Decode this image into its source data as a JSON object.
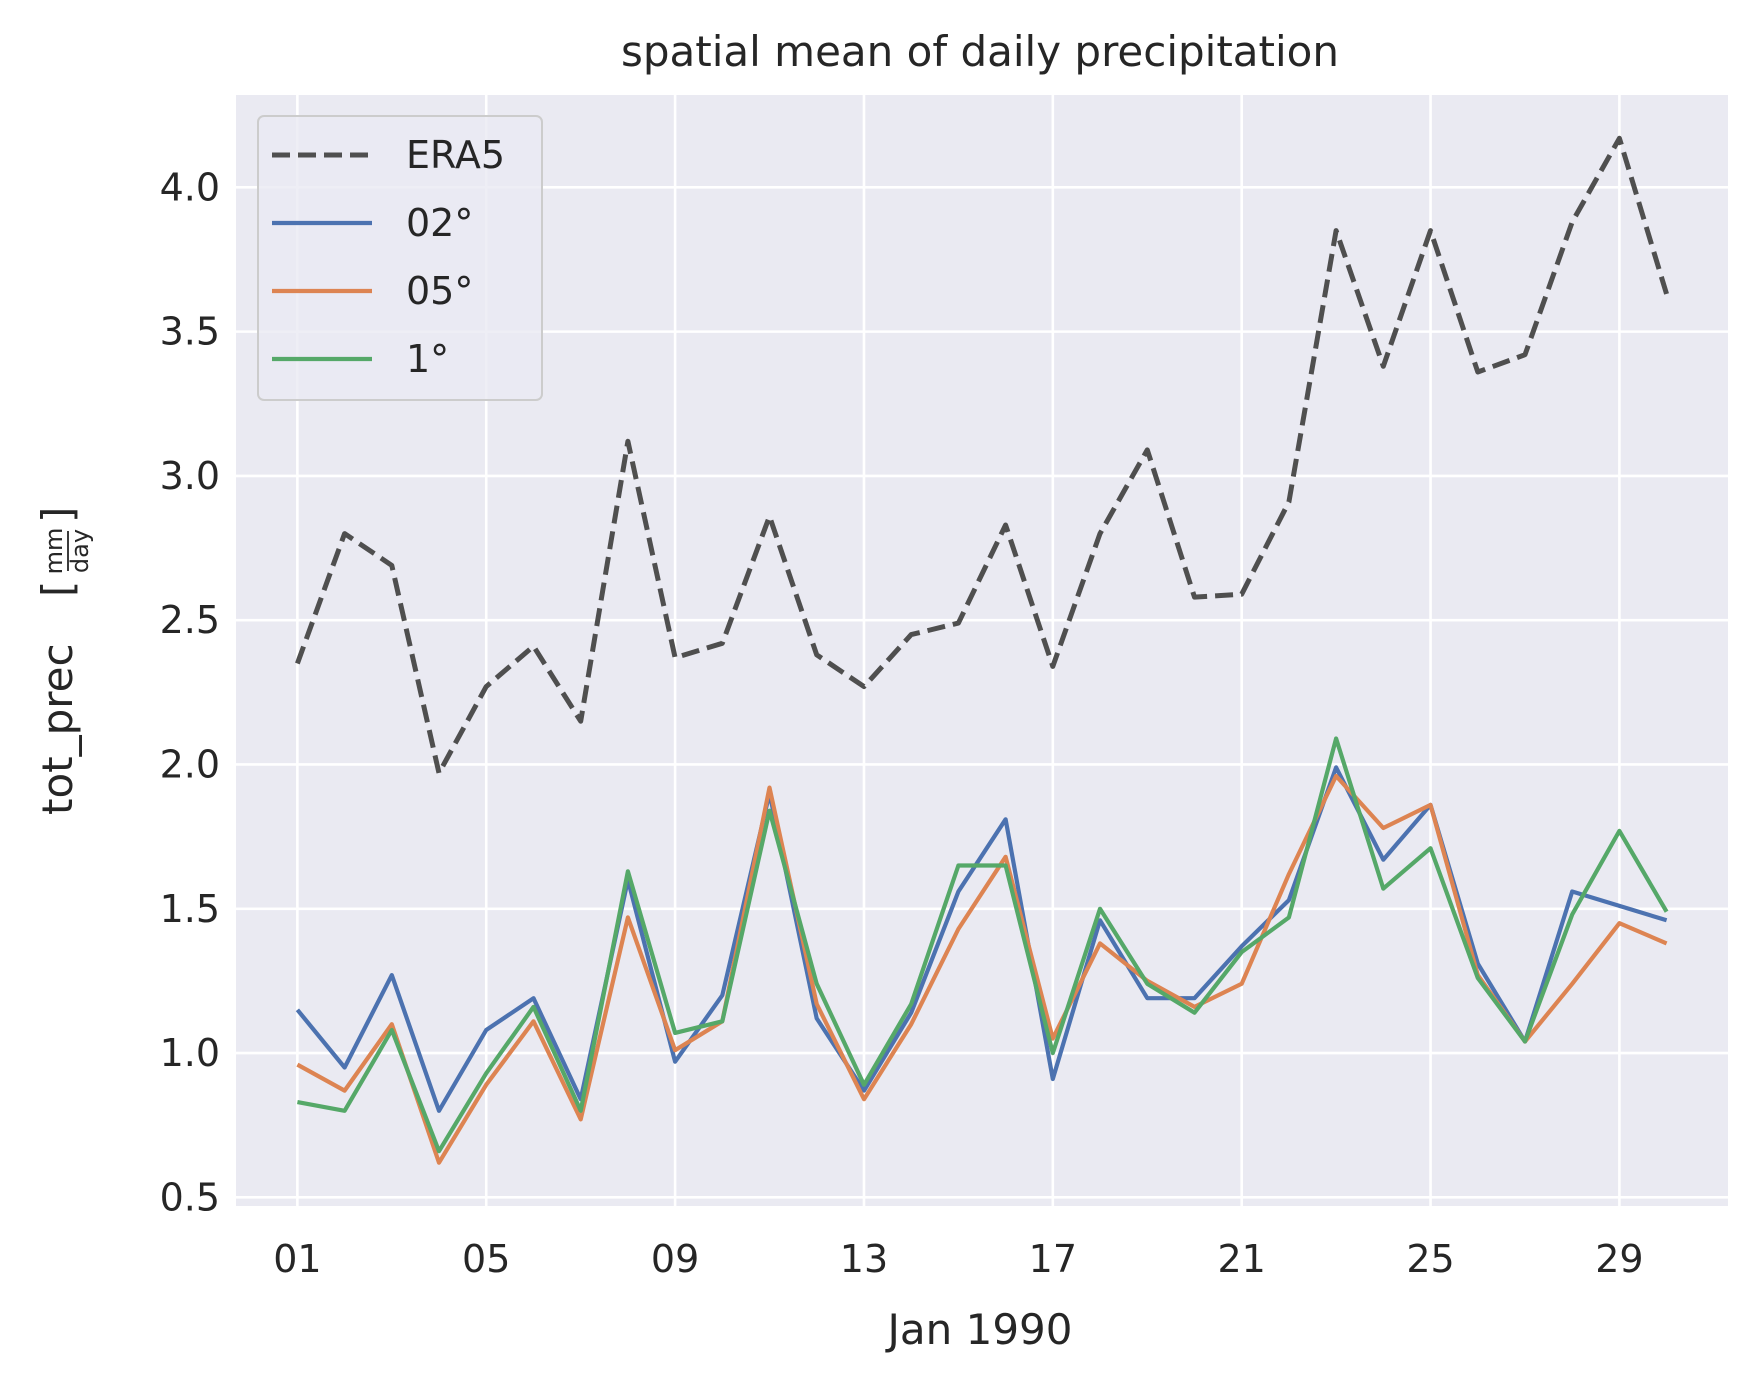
{
  "chart_data": {
    "type": "line",
    "title": "spatial mean of daily precipitation",
    "xlabel": "Jan 1990",
    "ylabel": {
      "prefix": "tot_prec",
      "unit_numerator": "mm",
      "unit_denominator": "day"
    },
    "x": [
      1,
      2,
      3,
      4,
      5,
      6,
      7,
      8,
      9,
      10,
      11,
      12,
      13,
      14,
      15,
      16,
      17,
      18,
      19,
      20,
      21,
      22,
      23,
      24,
      25,
      26,
      27,
      28,
      29,
      30
    ],
    "x_ticks": [
      {
        "value": 1,
        "label": "01"
      },
      {
        "value": 5,
        "label": "05"
      },
      {
        "value": 9,
        "label": "09"
      },
      {
        "value": 13,
        "label": "13"
      },
      {
        "value": 17,
        "label": "17"
      },
      {
        "value": 21,
        "label": "21"
      },
      {
        "value": 25,
        "label": "25"
      },
      {
        "value": 29,
        "label": "29"
      }
    ],
    "y_ticks": [
      {
        "value": 0.5,
        "label": "0.5"
      },
      {
        "value": 1.0,
        "label": "1.0"
      },
      {
        "value": 1.5,
        "label": "1.5"
      },
      {
        "value": 2.0,
        "label": "2.0"
      },
      {
        "value": 2.5,
        "label": "2.5"
      },
      {
        "value": 3.0,
        "label": "3.0"
      },
      {
        "value": 3.5,
        "label": "3.5"
      },
      {
        "value": 4.0,
        "label": "4.0"
      }
    ],
    "xlim": [
      -0.3,
      31.3
    ],
    "ylim": [
      0.47,
      4.32
    ],
    "grid": true,
    "legend_position": "upper-left",
    "series": [
      {
        "name": "ERA5",
        "color": "#4f4f4f",
        "dashed": true,
        "values": [
          2.35,
          2.8,
          2.69,
          1.97,
          2.27,
          2.41,
          2.15,
          3.12,
          2.37,
          2.42,
          2.86,
          2.38,
          2.27,
          2.45,
          2.49,
          2.83,
          2.34,
          2.8,
          3.09,
          2.58,
          2.59,
          2.91,
          3.85,
          3.38,
          3.85,
          3.36,
          3.42,
          3.88,
          4.17,
          3.63
        ]
      },
      {
        "name": "02°",
        "color": "#4c72b0",
        "dashed": false,
        "values": [
          1.15,
          0.95,
          1.27,
          0.8,
          1.08,
          1.19,
          0.84,
          1.6,
          0.97,
          1.2,
          1.9,
          1.12,
          0.87,
          1.14,
          1.56,
          1.81,
          0.91,
          1.46,
          1.19,
          1.19,
          1.37,
          1.53,
          1.99,
          1.67,
          1.86,
          1.31,
          1.04,
          1.56,
          1.51,
          1.46
        ]
      },
      {
        "name": "05°",
        "color": "#dd8452",
        "dashed": false,
        "values": [
          0.96,
          0.87,
          1.1,
          0.62,
          0.89,
          1.11,
          0.77,
          1.47,
          1.01,
          1.11,
          1.92,
          1.17,
          0.84,
          1.1,
          1.43,
          1.68,
          1.05,
          1.38,
          1.25,
          1.16,
          1.24,
          1.62,
          1.96,
          1.78,
          1.86,
          1.27,
          1.04,
          1.24,
          1.45,
          1.38
        ]
      },
      {
        "name": "1°",
        "color": "#55a868",
        "dashed": false,
        "values": [
          0.83,
          0.8,
          1.08,
          0.66,
          0.93,
          1.16,
          0.8,
          1.63,
          1.07,
          1.11,
          1.84,
          1.24,
          0.89,
          1.17,
          1.65,
          1.65,
          1.0,
          1.5,
          1.24,
          1.14,
          1.35,
          1.47,
          2.09,
          1.57,
          1.71,
          1.26,
          1.04,
          1.48,
          1.77,
          1.49
        ]
      }
    ]
  }
}
